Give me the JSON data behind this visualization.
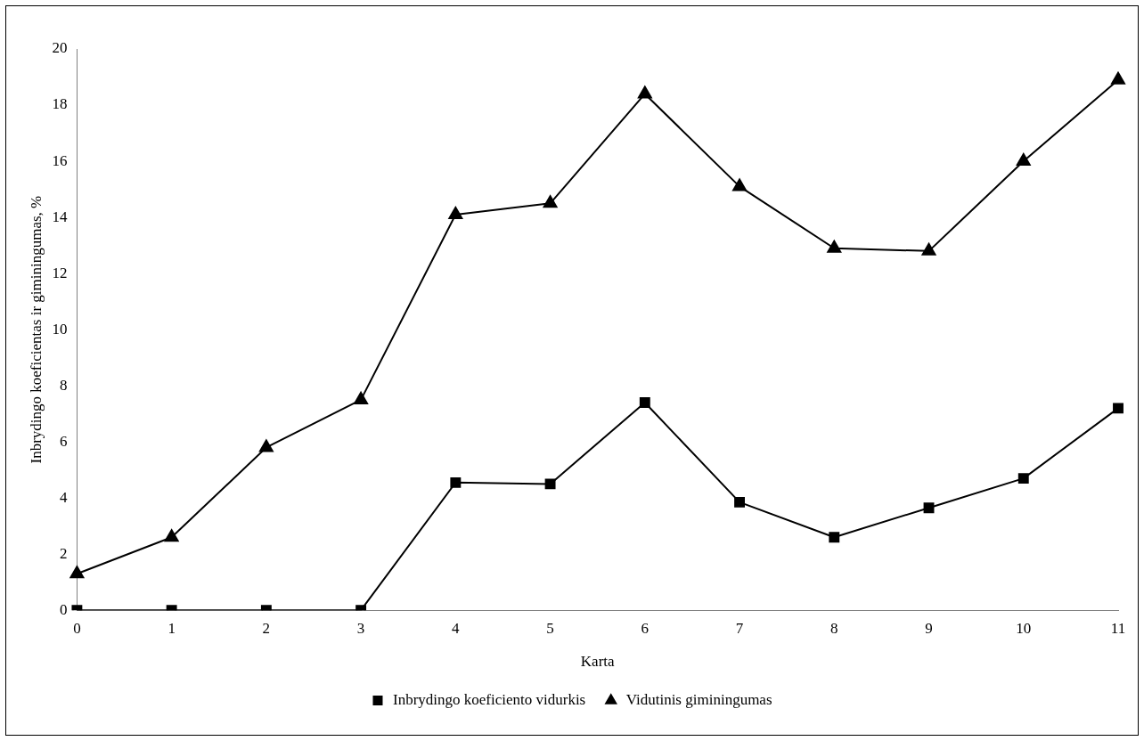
{
  "chart_data": {
    "type": "line",
    "xlabel": "Karta",
    "ylabel": "Inbrydingo koeficientas ir giminingumas, %",
    "categories": [
      "0",
      "1",
      "2",
      "3",
      "4",
      "5",
      "6",
      "7",
      "8",
      "9",
      "10",
      "11"
    ],
    "series": [
      {
        "name": "Inbrydingo koeficiento vidurkis",
        "color": "#000000",
        "marker": "square",
        "values": [
          0,
          0,
          0,
          0,
          4.55,
          4.5,
          7.4,
          3.85,
          2.6,
          3.65,
          4.7,
          7.2
        ]
      },
      {
        "name": "Vidutinis giminingumas",
        "color": "#000000",
        "marker": "triangle",
        "values": [
          1.3,
          2.6,
          5.8,
          7.5,
          14.1,
          14.5,
          18.4,
          15.1,
          12.9,
          12.8,
          16.0,
          18.9
        ]
      }
    ],
    "ylim": [
      0,
      20
    ],
    "yticks": [
      0,
      2,
      4,
      6,
      8,
      10,
      12,
      14,
      16,
      18,
      20
    ],
    "grid": false,
    "legend": "bottom",
    "line_style": "solid"
  }
}
